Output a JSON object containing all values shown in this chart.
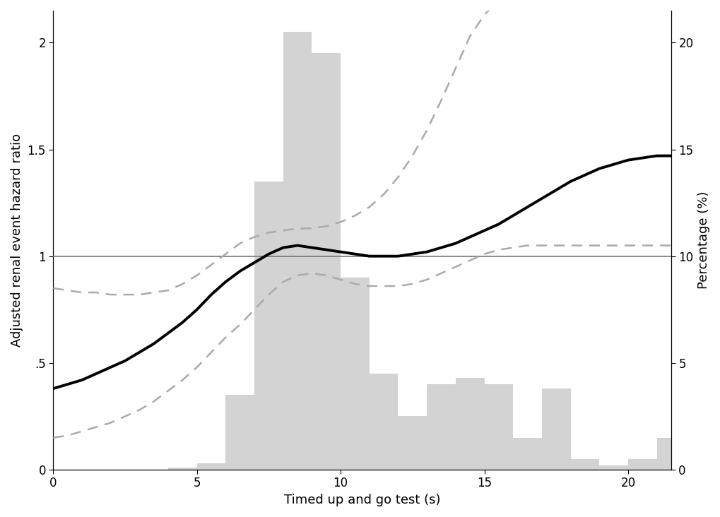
{
  "xlabel": "Timed up and go test (s)",
  "ylabel_left": "Adjusted renal event hazard ratio",
  "ylabel_right": "Percentage (%)",
  "xlim": [
    0,
    21.5
  ],
  "ylim_left": [
    0,
    2.15
  ],
  "ylim_right": [
    0,
    21.5
  ],
  "yticks_left": [
    0,
    0.5,
    1,
    1.5,
    2
  ],
  "ytick_labels_left": [
    "0",
    ".5",
    "1",
    "1.5",
    "2"
  ],
  "yticks_right": [
    0,
    5,
    10,
    15,
    20
  ],
  "xticks": [
    0,
    5,
    10,
    15,
    20
  ],
  "ref_line_y": 1.0,
  "line_color": "#000000",
  "ci_color": "#aaaaaa",
  "hist_color": "#d3d3d3",
  "ref_color": "#777777",
  "spline_x": [
    0.0,
    0.5,
    1.0,
    1.5,
    2.0,
    2.5,
    3.0,
    3.5,
    4.0,
    4.5,
    5.0,
    5.5,
    6.0,
    6.5,
    7.0,
    7.5,
    8.0,
    8.5,
    9.0,
    9.5,
    10.0,
    10.5,
    11.0,
    11.5,
    12.0,
    12.5,
    13.0,
    13.5,
    14.0,
    14.5,
    15.0,
    15.5,
    16.0,
    16.5,
    17.0,
    17.5,
    18.0,
    18.5,
    19.0,
    19.5,
    20.0,
    20.5,
    21.0,
    21.5
  ],
  "spline_y": [
    0.38,
    0.4,
    0.42,
    0.45,
    0.48,
    0.51,
    0.55,
    0.59,
    0.64,
    0.69,
    0.75,
    0.82,
    0.88,
    0.93,
    0.97,
    1.01,
    1.04,
    1.05,
    1.04,
    1.03,
    1.02,
    1.01,
    1.0,
    1.0,
    1.0,
    1.01,
    1.02,
    1.04,
    1.06,
    1.09,
    1.12,
    1.15,
    1.19,
    1.23,
    1.27,
    1.31,
    1.35,
    1.38,
    1.41,
    1.43,
    1.45,
    1.46,
    1.47,
    1.47
  ],
  "ci_upper": [
    0.85,
    0.84,
    0.83,
    0.83,
    0.82,
    0.82,
    0.82,
    0.83,
    0.84,
    0.87,
    0.91,
    0.96,
    1.01,
    1.06,
    1.09,
    1.11,
    1.12,
    1.13,
    1.13,
    1.14,
    1.16,
    1.19,
    1.23,
    1.29,
    1.37,
    1.47,
    1.59,
    1.73,
    1.88,
    2.03,
    2.13,
    2.2,
    2.25,
    2.28,
    2.3,
    2.31,
    2.32,
    2.32,
    2.32,
    2.32,
    2.32,
    2.32,
    2.32,
    2.32
  ],
  "ci_lower": [
    0.15,
    0.16,
    0.18,
    0.2,
    0.22,
    0.25,
    0.28,
    0.32,
    0.37,
    0.42,
    0.48,
    0.55,
    0.62,
    0.68,
    0.75,
    0.82,
    0.88,
    0.91,
    0.92,
    0.91,
    0.89,
    0.87,
    0.86,
    0.86,
    0.86,
    0.87,
    0.89,
    0.92,
    0.95,
    0.98,
    1.01,
    1.03,
    1.04,
    1.05,
    1.05,
    1.05,
    1.05,
    1.05,
    1.05,
    1.05,
    1.05,
    1.05,
    1.05,
    1.05
  ],
  "hist_edges": [
    0,
    1,
    2,
    3,
    4,
    5,
    6,
    7,
    8,
    9,
    10,
    11,
    12,
    13,
    14,
    15,
    16,
    17,
    18,
    19,
    20,
    21,
    22
  ],
  "hist_heights_pct": [
    0.0,
    0.0,
    0.0,
    0.0,
    0.1,
    0.3,
    3.5,
    13.5,
    20.5,
    19.5,
    9.0,
    4.5,
    2.5,
    4.0,
    4.3,
    4.0,
    1.5,
    3.8,
    0.5,
    0.2,
    0.5,
    1.5
  ]
}
